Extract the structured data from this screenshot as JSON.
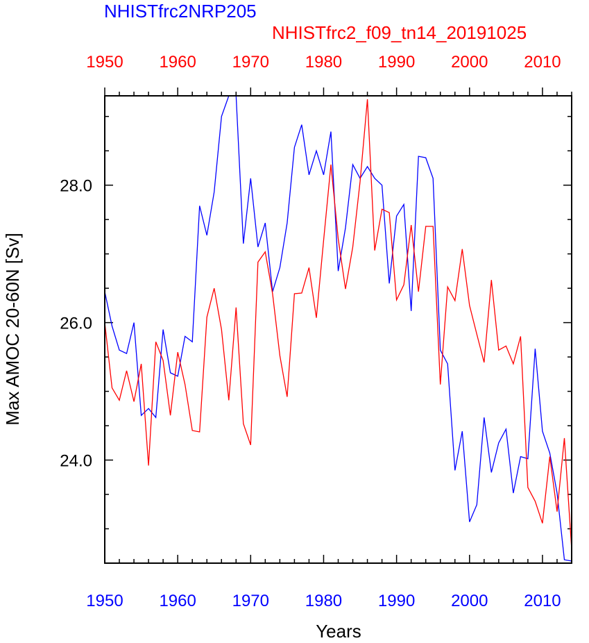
{
  "chart_data": {
    "type": "line",
    "titles": [
      "NHISTfrc2NRP205",
      "NHISTfrc2_f09_tn14_20191025"
    ],
    "xlabel": "Years",
    "ylabel": "Max AMOC 20-60N [Sv]",
    "xlim": [
      1950,
      2014
    ],
    "ylim": [
      22.5,
      29.3
    ],
    "x_ticks": [
      1950,
      1960,
      1970,
      1980,
      1990,
      2000,
      2010
    ],
    "x_tick_labels": [
      "1950",
      "1960",
      "1970",
      "1980",
      "1990",
      "2000",
      "2010"
    ],
    "y_ticks": [
      24,
      26,
      28
    ],
    "y_tick_labels": [
      "24.0",
      "26.0",
      "28.0"
    ],
    "colors": {
      "top_axis": "#ff0000",
      "bottom_axis": "#0000ff"
    },
    "series": [
      {
        "name": "NHISTfrc2NRP205",
        "color": "#0000ff",
        "x": [
          1950,
          1951,
          1952,
          1953,
          1954,
          1955,
          1956,
          1957,
          1958,
          1959,
          1960,
          1961,
          1962,
          1963,
          1964,
          1965,
          1966,
          1967,
          1968,
          1969,
          1970,
          1971,
          1972,
          1973,
          1974,
          1975,
          1976,
          1977,
          1978,
          1979,
          1980,
          1981,
          1982,
          1983,
          1984,
          1985,
          1986,
          1987,
          1988,
          1989,
          1990,
          1991,
          1992,
          1993,
          1994,
          1995,
          1996,
          1997,
          1998,
          1999,
          2000,
          2001,
          2002,
          2003,
          2004,
          2005,
          2006,
          2007,
          2008,
          2009,
          2010,
          2011,
          2012,
          2013,
          2014
        ],
        "values": [
          26.45,
          25.95,
          25.6,
          25.55,
          26.0,
          24.65,
          24.75,
          24.62,
          25.9,
          25.27,
          25.22,
          25.8,
          25.72,
          27.7,
          27.27,
          27.9,
          29.0,
          29.3,
          29.3,
          27.15,
          28.1,
          27.1,
          27.45,
          26.45,
          26.8,
          27.45,
          28.55,
          28.88,
          28.15,
          28.5,
          28.15,
          28.78,
          26.75,
          27.38,
          28.3,
          28.1,
          28.27,
          28.1,
          28.0,
          26.57,
          27.55,
          27.72,
          26.17,
          28.42,
          28.4,
          28.1,
          25.6,
          25.4,
          23.85,
          24.42,
          23.1,
          23.35,
          24.62,
          23.82,
          24.25,
          24.45,
          23.52,
          24.05,
          24.02,
          25.62,
          24.42,
          24.1,
          23.52,
          22.55,
          22.53
        ]
      },
      {
        "name": "NHISTfrc2_f09_tn14_20191025",
        "color": "#ff0000",
        "x": [
          1950,
          1951,
          1952,
          1953,
          1954,
          1955,
          1956,
          1957,
          1958,
          1959,
          1960,
          1961,
          1962,
          1963,
          1964,
          1965,
          1966,
          1967,
          1968,
          1969,
          1970,
          1971,
          1972,
          1973,
          1974,
          1975,
          1976,
          1977,
          1978,
          1979,
          1980,
          1981,
          1982,
          1983,
          1984,
          1985,
          1986,
          1987,
          1988,
          1989,
          1990,
          1991,
          1992,
          1993,
          1994,
          1995,
          1996,
          1997,
          1998,
          1999,
          2000,
          2001,
          2002,
          2003,
          2004,
          2005,
          2006,
          2007,
          2008,
          2009,
          2010,
          2011,
          2012,
          2013,
          2014
        ],
        "values": [
          26.0,
          25.05,
          24.87,
          25.3,
          24.85,
          25.4,
          23.92,
          25.72,
          25.45,
          24.65,
          25.57,
          25.1,
          24.43,
          24.41,
          26.08,
          26.5,
          25.9,
          24.87,
          26.22,
          24.53,
          24.22,
          26.88,
          27.03,
          26.42,
          25.52,
          24.92,
          26.42,
          26.43,
          26.8,
          26.07,
          27.2,
          28.3,
          27.22,
          26.49,
          27.1,
          28.05,
          29.25,
          27.05,
          27.65,
          27.6,
          26.33,
          26.55,
          27.42,
          26.45,
          27.4,
          27.4,
          25.1,
          26.52,
          26.32,
          27.07,
          26.25,
          25.83,
          25.42,
          26.62,
          25.6,
          25.66,
          25.4,
          25.8,
          23.6,
          23.4,
          23.08,
          24.05,
          23.25,
          24.32,
          22.7
        ]
      }
    ]
  }
}
